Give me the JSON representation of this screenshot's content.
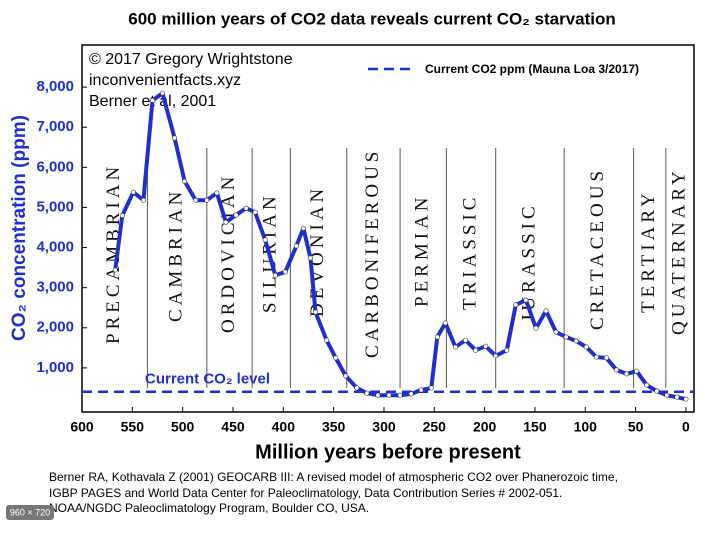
{
  "chart_data": {
    "type": "line",
    "title": "600 million years of CO2 data reveals current CO₂ starvation",
    "credits": [
      "© 2017 Gregory Wrightstone",
      "inconvenientfacts.xyz",
      "Berner et al, 2001"
    ],
    "x_label": "Million years before present",
    "y_label": "CO₂ concentration (ppm)",
    "color": "#1f2fd0",
    "x": [
      567,
      560,
      549,
      539,
      530,
      520,
      508,
      498,
      487,
      476,
      466,
      457,
      447,
      437,
      428,
      418,
      408,
      398,
      387,
      380,
      373,
      368,
      357,
      348,
      338,
      327,
      317,
      306,
      295,
      284,
      273,
      263,
      253,
      247,
      239,
      229,
      219,
      209,
      199,
      189,
      178,
      169,
      159,
      149,
      139,
      129,
      119,
      109,
      99,
      89,
      79,
      69,
      59,
      49,
      39,
      29,
      19,
      9,
      0
    ],
    "values": [
      3440,
      4800,
      5380,
      5180,
      7670,
      7850,
      6730,
      5650,
      5180,
      5180,
      5360,
      4630,
      4810,
      4980,
      4880,
      4190,
      3310,
      3390,
      4040,
      4480,
      3740,
      2390,
      1690,
      1250,
      800,
      500,
      370,
      320,
      320,
      320,
      350,
      450,
      500,
      1770,
      2120,
      1520,
      1690,
      1440,
      1540,
      1300,
      1440,
      2570,
      2690,
      1990,
      2420,
      1890,
      1770,
      1670,
      1520,
      1270,
      1250,
      950,
      850,
      920,
      570,
      420,
      320,
      270,
      220
    ],
    "reference_line": {
      "label": "Current CO2 ppm (Mauna Loa 3/2017)",
      "annotation": "Current CO₂ level",
      "value": 405,
      "color": "#1f2fd0"
    },
    "periods": [
      "PRECAMBRIAN",
      "CAMBRIAN",
      "ORDOVICIAN",
      "SILURIAN",
      "DEVONIAN",
      "CARBONIFEROUS",
      "PERMIAN",
      "TRIASSIC",
      "JURASSIC",
      "CRETACEOUS",
      "TERTIARY",
      "QUATERNARY"
    ],
    "period_boundaries": [
      535,
      476,
      431,
      393,
      337,
      284,
      238,
      189,
      121,
      52,
      20
    ],
    "xlim": [
      600,
      -8
    ],
    "ylim": [
      -100,
      9050
    ],
    "xticks": [
      600,
      550,
      500,
      450,
      400,
      350,
      300,
      250,
      200,
      150,
      100,
      50,
      0
    ],
    "yticks": [
      {
        "value": 1000,
        "label": "1,000"
      },
      {
        "value": 2000,
        "label": "2,000"
      },
      {
        "value": 3000,
        "label": "3,000"
      },
      {
        "value": 4000,
        "label": "4,000"
      },
      {
        "value": 5000,
        "label": "5,000"
      },
      {
        "value": 6000,
        "label": "6,000"
      },
      {
        "value": 7000,
        "label": "7,000"
      },
      {
        "value": 8000,
        "label": "8,000"
      }
    ],
    "legend": "top-right",
    "footer": [
      "Berner RA, Kothavala Z (2001) GEOCARB III: A revised model of atmospheric CO2 over Phanerozoic time,",
      "IGBP PAGES and World Data Center for Paleoclimatology, Data Contribution Series # 2002-051.",
      "NOAA/NGDC Paleoclimatology Program, Boulder CO, USA."
    ],
    "badge": "960 × 720"
  }
}
